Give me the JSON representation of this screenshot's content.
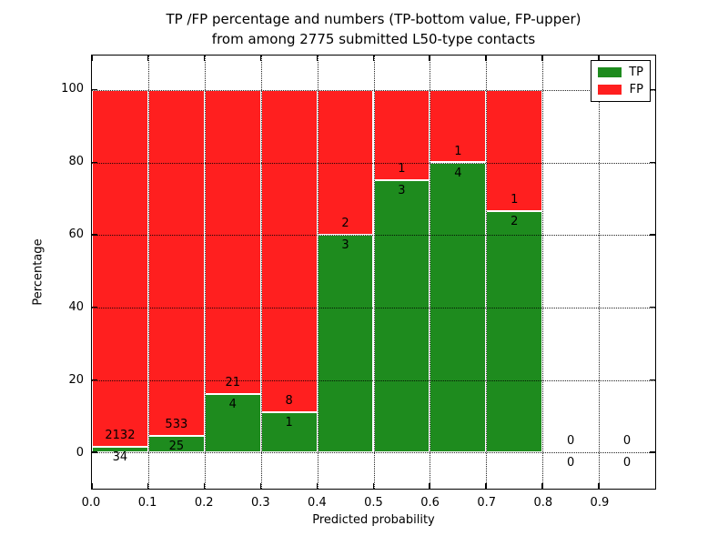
{
  "figure": {
    "title_line1": "TP /FP percentage and numbers (TP-bottom value, FP-upper)",
    "title_line2": "from among 2775 submitted L50-type contacts"
  },
  "chart_data": {
    "type": "bar",
    "stacked": true,
    "title": "TP /FP percentage and numbers (TP-bottom value, FP-upper) from among 2775 submitted L50-type contacts",
    "total_contacts": 2775,
    "xlabel": "Predicted probability",
    "ylabel": "Percentage",
    "xlim": [
      0.0,
      1.0
    ],
    "ylim": [
      -10,
      109.5
    ],
    "grid": true,
    "xtick_labels": [
      "0.0",
      "0.1",
      "0.2",
      "0.3",
      "0.4",
      "0.5",
      "0.6",
      "0.7",
      "0.8",
      "0.9"
    ],
    "xtick_values": [
      0.0,
      0.1,
      0.2,
      0.3,
      0.4,
      0.5,
      0.6,
      0.7,
      0.8,
      0.9
    ],
    "ytick_labels": [
      "0",
      "20",
      "40",
      "60",
      "80",
      "100"
    ],
    "ytick_values": [
      0,
      20,
      40,
      60,
      80,
      100
    ],
    "colors": {
      "tp": "#1e8b1e",
      "fp": "#ff1f1f",
      "bar_edge": "#ffffff"
    },
    "legend": {
      "position": "upper-right",
      "items": [
        {
          "label": "TP",
          "color": "#1e8b1e"
        },
        {
          "label": "FP",
          "color": "#ff1f1f"
        }
      ]
    },
    "bars": [
      {
        "x0": 0.0,
        "x1": 0.1,
        "tp_count": 34,
        "fp_count": 2132,
        "tp_pct": 1.57,
        "fp_pct": 98.43,
        "has_bar": true
      },
      {
        "x0": 0.1,
        "x1": 0.2,
        "tp_count": 25,
        "fp_count": 533,
        "tp_pct": 4.48,
        "fp_pct": 95.52,
        "has_bar": true
      },
      {
        "x0": 0.2,
        "x1": 0.3,
        "tp_count": 4,
        "fp_count": 21,
        "tp_pct": 16.0,
        "fp_pct": 84.0,
        "has_bar": true
      },
      {
        "x0": 0.3,
        "x1": 0.4,
        "tp_count": 1,
        "fp_count": 8,
        "tp_pct": 11.11,
        "fp_pct": 88.89,
        "has_bar": true
      },
      {
        "x0": 0.4,
        "x1": 0.5,
        "tp_count": 3,
        "fp_count": 2,
        "tp_pct": 60.0,
        "fp_pct": 40.0,
        "has_bar": true
      },
      {
        "x0": 0.5,
        "x1": 0.6,
        "tp_count": 3,
        "fp_count": 1,
        "tp_pct": 75.0,
        "fp_pct": 25.0,
        "has_bar": true
      },
      {
        "x0": 0.6,
        "x1": 0.7,
        "tp_count": 4,
        "fp_count": 1,
        "tp_pct": 80.0,
        "fp_pct": 20.0,
        "has_bar": true
      },
      {
        "x0": 0.7,
        "x1": 0.8,
        "tp_count": 2,
        "fp_count": 1,
        "tp_pct": 66.67,
        "fp_pct": 33.33,
        "has_bar": true
      },
      {
        "x0": 0.8,
        "x1": 0.9,
        "tp_count": 0,
        "fp_count": 0,
        "tp_pct": 0,
        "fp_pct": 0,
        "has_bar": false
      },
      {
        "x0": 0.9,
        "x1": 1.0,
        "tp_count": 0,
        "fp_count": 0,
        "tp_pct": 0,
        "fp_pct": 0,
        "has_bar": false
      }
    ]
  }
}
